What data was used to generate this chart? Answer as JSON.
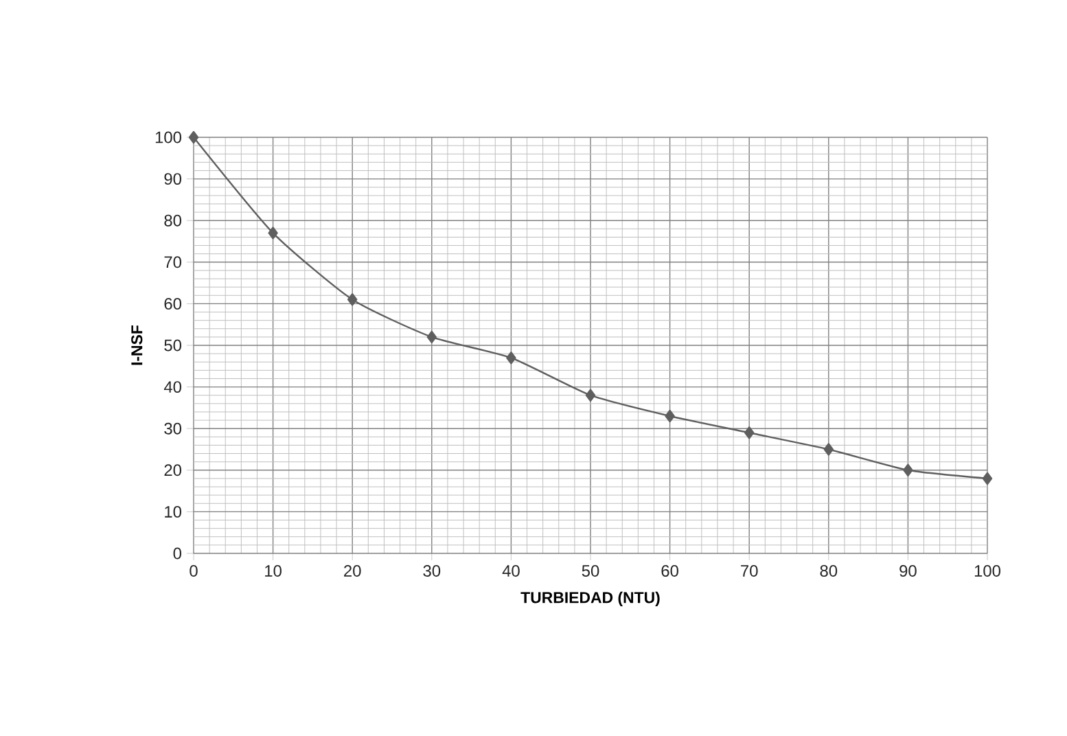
{
  "chart_data": {
    "type": "line",
    "xlabel": "TURBIEDAD (NTU)",
    "ylabel": "I-NSF",
    "x": [
      0,
      10,
      20,
      30,
      40,
      50,
      60,
      70,
      80,
      90,
      100
    ],
    "series": [
      {
        "color": "#5f5f5f",
        "values": [
          100,
          77,
          61,
          52,
          47,
          38,
          33,
          29,
          25,
          20,
          18
        ]
      }
    ],
    "xlim": [
      0,
      100
    ],
    "xticks": [
      0,
      10,
      20,
      30,
      40,
      50,
      60,
      70,
      80,
      90,
      100
    ],
    "ylim": [
      0,
      100
    ],
    "yticks": [
      0,
      10,
      20,
      30,
      40,
      50,
      60,
      70,
      80,
      90,
      100
    ],
    "grid": true,
    "marker": "diamond",
    "line_style": "solid"
  }
}
